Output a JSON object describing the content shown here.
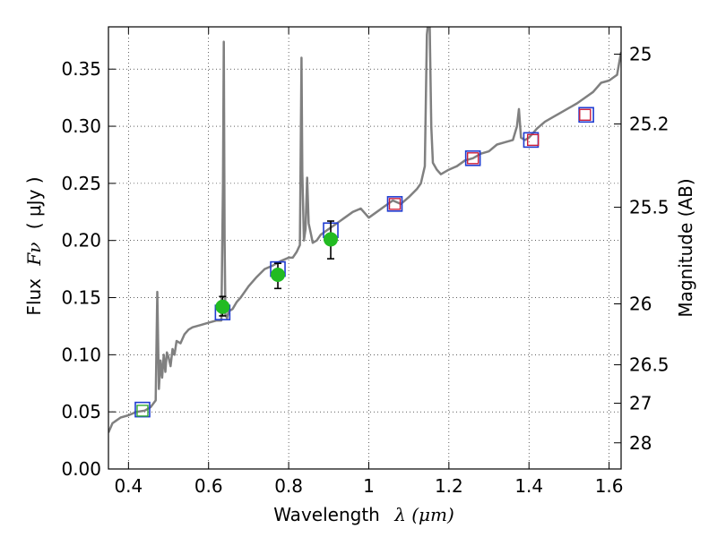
{
  "chart_data": {
    "type": "line",
    "xlabel": "Wavelength",
    "xlabel_math": "λ (μm)",
    "ylabel_left": "Flux",
    "ylabel_left_math": "Fν",
    "ylabel_left_unit": "( μJy )",
    "ylabel_right": "Magnitude (AB)",
    "xlim": [
      0.35,
      1.63
    ],
    "ylim": [
      0.0,
      0.387
    ],
    "grid": true,
    "x_ticks": [
      {
        "v": 0.4,
        "label": "0.4"
      },
      {
        "v": 0.6,
        "label": "0.6"
      },
      {
        "v": 0.8,
        "label": "0.8"
      },
      {
        "v": 1.0,
        "label": "1"
      },
      {
        "v": 1.2,
        "label": "1.2"
      },
      {
        "v": 1.4,
        "label": "1.4"
      },
      {
        "v": 1.6,
        "label": "1.6"
      }
    ],
    "y_ticks": [
      {
        "v": 0.0,
        "label": "0.00"
      },
      {
        "v": 0.05,
        "label": "0.05"
      },
      {
        "v": 0.1,
        "label": "0.10"
      },
      {
        "v": 0.15,
        "label": "0.15"
      },
      {
        "v": 0.2,
        "label": "0.20"
      },
      {
        "v": 0.25,
        "label": "0.25"
      },
      {
        "v": 0.3,
        "label": "0.30"
      },
      {
        "v": 0.35,
        "label": "0.35"
      }
    ],
    "right_ticks": [
      {
        "mag": 25,
        "label": "25"
      },
      {
        "mag": 25.2,
        "label": "25.2"
      },
      {
        "mag": 25.5,
        "label": "25.5"
      },
      {
        "mag": 26,
        "label": "26"
      },
      {
        "mag": 26.5,
        "label": "26.5"
      },
      {
        "mag": 27,
        "label": "27"
      },
      {
        "mag": 28,
        "label": "28"
      }
    ],
    "spectrum": {
      "color": "#808080",
      "x": [
        0.35,
        0.36,
        0.38,
        0.4,
        0.42,
        0.44,
        0.455,
        0.468,
        0.472,
        0.476,
        0.48,
        0.484,
        0.488,
        0.492,
        0.496,
        0.5,
        0.505,
        0.51,
        0.515,
        0.52,
        0.53,
        0.54,
        0.55,
        0.56,
        0.58,
        0.6,
        0.62,
        0.632,
        0.636,
        0.638,
        0.64,
        0.642,
        0.646,
        0.65,
        0.66,
        0.67,
        0.68,
        0.7,
        0.72,
        0.74,
        0.76,
        0.78,
        0.8,
        0.81,
        0.82,
        0.828,
        0.832,
        0.834,
        0.838,
        0.842,
        0.846,
        0.85,
        0.856,
        0.86,
        0.87,
        0.88,
        0.9,
        0.92,
        0.94,
        0.96,
        0.98,
        1.0,
        1.02,
        1.04,
        1.06,
        1.08,
        1.1,
        1.12,
        1.13,
        1.14,
        1.145,
        1.148,
        1.152,
        1.156,
        1.16,
        1.17,
        1.18,
        1.2,
        1.22,
        1.24,
        1.26,
        1.28,
        1.3,
        1.32,
        1.34,
        1.36,
        1.37,
        1.375,
        1.38,
        1.39,
        1.4,
        1.42,
        1.44,
        1.46,
        1.48,
        1.5,
        1.52,
        1.54,
        1.56,
        1.58,
        1.6,
        1.62,
        1.63
      ],
      "y": [
        0.032,
        0.04,
        0.045,
        0.047,
        0.05,
        0.051,
        0.054,
        0.06,
        0.155,
        0.07,
        0.095,
        0.08,
        0.1,
        0.085,
        0.102,
        0.098,
        0.09,
        0.105,
        0.1,
        0.112,
        0.11,
        0.118,
        0.122,
        0.124,
        0.126,
        0.128,
        0.13,
        0.13,
        0.25,
        0.374,
        0.2,
        0.135,
        0.132,
        0.138,
        0.14,
        0.146,
        0.15,
        0.16,
        0.168,
        0.175,
        0.178,
        0.182,
        0.185,
        0.185,
        0.19,
        0.196,
        0.36,
        0.26,
        0.2,
        0.21,
        0.255,
        0.215,
        0.205,
        0.198,
        0.2,
        0.205,
        0.21,
        0.215,
        0.22,
        0.225,
        0.228,
        0.22,
        0.225,
        0.23,
        0.235,
        0.232,
        0.238,
        0.245,
        0.25,
        0.265,
        0.38,
        0.39,
        0.39,
        0.3,
        0.268,
        0.262,
        0.258,
        0.262,
        0.265,
        0.27,
        0.272,
        0.276,
        0.278,
        0.284,
        0.286,
        0.288,
        0.3,
        0.315,
        0.29,
        0.288,
        0.29,
        0.298,
        0.304,
        0.308,
        0.312,
        0.316,
        0.32,
        0.325,
        0.33,
        0.338,
        0.34,
        0.345,
        0.365
      ]
    },
    "model_points": {
      "color": "#cc1f3c",
      "x": [
        1.065,
        1.26,
        1.41,
        1.54
      ],
      "y": [
        0.232,
        0.272,
        0.288,
        0.31
      ]
    },
    "bandpass_squares": {
      "color": "#1f3cd1",
      "x": [
        0.435,
        0.635,
        0.773,
        0.905,
        1.065,
        1.26,
        1.405,
        1.543
      ],
      "y": [
        0.052,
        0.137,
        0.175,
        0.209,
        0.232,
        0.272,
        0.288,
        0.31
      ]
    },
    "reference_square": {
      "color": "#33aa33",
      "x": 0.435,
      "y": 0.051
    },
    "observed": {
      "color": "#22bb22",
      "x": [
        0.635,
        0.773,
        0.905
      ],
      "y": [
        0.142,
        0.17,
        0.201
      ],
      "err_low": [
        0.008,
        0.012,
        0.017
      ],
      "err_high": [
        0.009,
        0.01,
        0.016
      ]
    }
  }
}
